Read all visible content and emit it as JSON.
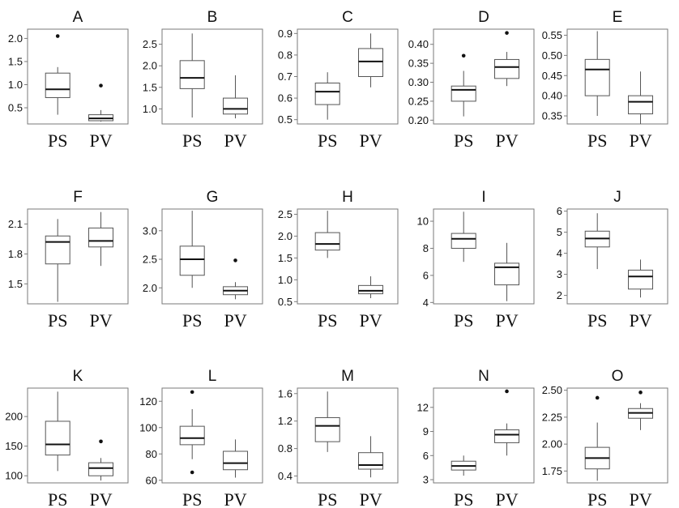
{
  "chart_data": [
    {
      "type": "box",
      "title": "A",
      "categories": [
        "PS",
        "PV"
      ],
      "ylim": [
        0.15,
        2.2
      ],
      "yticks": [
        0.5,
        1.0,
        1.5,
        2.0
      ],
      "ytick_labels": [
        "0.5",
        "1.0",
        "1.5",
        "2.0"
      ],
      "boxes": [
        {
          "min": 0.35,
          "q1": 0.72,
          "median": 0.9,
          "q3": 1.25,
          "max": 1.38,
          "outliers": [
            2.05
          ]
        },
        {
          "min": 0.2,
          "q1": 0.22,
          "median": 0.27,
          "q3": 0.35,
          "max": 0.45,
          "outliers": [
            0.98
          ]
        }
      ]
    },
    {
      "type": "box",
      "title": "B",
      "categories": [
        "PS",
        "PV"
      ],
      "ylim": [
        0.65,
        2.85
      ],
      "yticks": [
        1.0,
        1.5,
        2.0,
        2.5
      ],
      "ytick_labels": [
        "1.0",
        "1.5",
        "2.0",
        "2.5"
      ],
      "boxes": [
        {
          "min": 0.8,
          "q1": 1.47,
          "median": 1.72,
          "q3": 2.12,
          "max": 2.75,
          "outliers": []
        },
        {
          "min": 0.78,
          "q1": 0.88,
          "median": 1.0,
          "q3": 1.25,
          "max": 1.78,
          "outliers": []
        }
      ]
    },
    {
      "type": "box",
      "title": "C",
      "categories": [
        "PS",
        "PV"
      ],
      "ylim": [
        0.48,
        0.92
      ],
      "yticks": [
        0.5,
        0.6,
        0.7,
        0.8,
        0.9
      ],
      "ytick_labels": [
        "0.5",
        "0.6",
        "0.7",
        "0.8",
        "0.9"
      ],
      "boxes": [
        {
          "min": 0.5,
          "q1": 0.57,
          "median": 0.63,
          "q3": 0.67,
          "max": 0.72,
          "outliers": []
        },
        {
          "min": 0.65,
          "q1": 0.7,
          "median": 0.77,
          "q3": 0.83,
          "max": 0.9,
          "outliers": []
        }
      ]
    },
    {
      "type": "box",
      "title": "D",
      "categories": [
        "PS",
        "PV"
      ],
      "ylim": [
        0.19,
        0.44
      ],
      "yticks": [
        0.2,
        0.25,
        0.3,
        0.35,
        0.4
      ],
      "ytick_labels": [
        "0.20",
        "0.25",
        "0.30",
        "0.35",
        "0.40"
      ],
      "boxes": [
        {
          "min": 0.21,
          "q1": 0.25,
          "median": 0.28,
          "q3": 0.29,
          "max": 0.33,
          "outliers": [
            0.37
          ]
        },
        {
          "min": 0.29,
          "q1": 0.31,
          "median": 0.34,
          "q3": 0.36,
          "max": 0.38,
          "outliers": [
            0.43
          ]
        }
      ]
    },
    {
      "type": "box",
      "title": "E",
      "categories": [
        "PS",
        "PV"
      ],
      "ylim": [
        0.33,
        0.565
      ],
      "yticks": [
        0.35,
        0.4,
        0.45,
        0.5,
        0.55
      ],
      "ytick_labels": [
        "0.35",
        "0.40",
        "0.45",
        "0.50",
        "0.55"
      ],
      "boxes": [
        {
          "min": 0.35,
          "q1": 0.4,
          "median": 0.465,
          "q3": 0.49,
          "max": 0.56,
          "outliers": []
        },
        {
          "min": 0.33,
          "q1": 0.355,
          "median": 0.385,
          "q3": 0.4,
          "max": 0.46,
          "outliers": []
        }
      ]
    },
    {
      "type": "box",
      "title": "F",
      "categories": [
        "PS",
        "PV"
      ],
      "ylim": [
        1.3,
        2.25
      ],
      "yticks": [
        1.5,
        1.8,
        2.1
      ],
      "ytick_labels": [
        "1.5",
        "1.8",
        "2.1"
      ],
      "boxes": [
        {
          "min": 1.32,
          "q1": 1.7,
          "median": 1.92,
          "q3": 1.98,
          "max": 2.15,
          "outliers": []
        },
        {
          "min": 1.68,
          "q1": 1.87,
          "median": 1.93,
          "q3": 2.06,
          "max": 2.22,
          "outliers": []
        }
      ]
    },
    {
      "type": "box",
      "title": "G",
      "categories": [
        "PS",
        "PV"
      ],
      "ylim": [
        1.72,
        3.38
      ],
      "yticks": [
        2.0,
        2.5,
        3.0
      ],
      "ytick_labels": [
        "2.0",
        "2.5",
        "3.0"
      ],
      "boxes": [
        {
          "min": 2.0,
          "q1": 2.22,
          "median": 2.5,
          "q3": 2.73,
          "max": 3.35,
          "outliers": []
        },
        {
          "min": 1.8,
          "q1": 1.88,
          "median": 1.95,
          "q3": 2.02,
          "max": 2.1,
          "outliers": [
            2.48
          ]
        }
      ]
    },
    {
      "type": "box",
      "title": "H",
      "categories": [
        "PS",
        "PV"
      ],
      "ylim": [
        0.45,
        2.62
      ],
      "yticks": [
        0.5,
        1.0,
        1.5,
        2.0,
        2.5
      ],
      "ytick_labels": [
        "0.5",
        "1.0",
        "1.5",
        "2.0",
        "2.5"
      ],
      "boxes": [
        {
          "min": 1.5,
          "q1": 1.68,
          "median": 1.82,
          "q3": 2.08,
          "max": 2.58,
          "outliers": []
        },
        {
          "min": 0.58,
          "q1": 0.68,
          "median": 0.75,
          "q3": 0.87,
          "max": 1.08,
          "outliers": []
        }
      ]
    },
    {
      "type": "box",
      "title": "I",
      "categories": [
        "PS",
        "PV"
      ],
      "ylim": [
        3.9,
        10.9
      ],
      "yticks": [
        4,
        6,
        8,
        10
      ],
      "ytick_labels": [
        "4",
        "6",
        "8",
        "10"
      ],
      "boxes": [
        {
          "min": 7.0,
          "q1": 8.0,
          "median": 8.7,
          "q3": 9.1,
          "max": 10.7,
          "outliers": []
        },
        {
          "min": 4.1,
          "q1": 5.3,
          "median": 6.6,
          "q3": 6.9,
          "max": 8.4,
          "outliers": []
        }
      ]
    },
    {
      "type": "box",
      "title": "J",
      "categories": [
        "PS",
        "PV"
      ],
      "ylim": [
        1.6,
        6.1
      ],
      "yticks": [
        2,
        3,
        4,
        5,
        6
      ],
      "ytick_labels": [
        "2",
        "3",
        "4",
        "5",
        "6"
      ],
      "boxes": [
        {
          "min": 3.25,
          "q1": 4.3,
          "median": 4.7,
          "q3": 5.05,
          "max": 5.9,
          "outliers": []
        },
        {
          "min": 1.9,
          "q1": 2.3,
          "median": 2.9,
          "q3": 3.2,
          "max": 3.7,
          "outliers": []
        }
      ]
    },
    {
      "type": "box",
      "title": "K",
      "categories": [
        "PS",
        "PV"
      ],
      "ylim": [
        88,
        248
      ],
      "yticks": [
        100,
        150,
        200
      ],
      "ytick_labels": [
        "100",
        "150",
        "200"
      ],
      "boxes": [
        {
          "min": 108,
          "q1": 135,
          "median": 153,
          "q3": 192,
          "max": 242,
          "outliers": []
        },
        {
          "min": 92,
          "q1": 100,
          "median": 113,
          "q3": 122,
          "max": 130,
          "outliers": [
            158
          ]
        }
      ]
    },
    {
      "type": "box",
      "title": "L",
      "categories": [
        "PS",
        "PV"
      ],
      "ylim": [
        58,
        130
      ],
      "yticks": [
        60,
        80,
        100,
        120
      ],
      "ytick_labels": [
        "60",
        "80",
        "100",
        "120"
      ],
      "boxes": [
        {
          "min": 76,
          "q1": 87,
          "median": 92,
          "q3": 101,
          "max": 114,
          "outliers": [
            127,
            66
          ]
        },
        {
          "min": 62,
          "q1": 68,
          "median": 73,
          "q3": 82,
          "max": 91,
          "outliers": []
        }
      ]
    },
    {
      "type": "box",
      "title": "M",
      "categories": [
        "PS",
        "PV"
      ],
      "ylim": [
        0.3,
        1.68
      ],
      "yticks": [
        0.4,
        0.8,
        1.2,
        1.6
      ],
      "ytick_labels": [
        "0.4",
        "0.8",
        "1.2",
        "1.6"
      ],
      "boxes": [
        {
          "min": 0.75,
          "q1": 0.9,
          "median": 1.13,
          "q3": 1.25,
          "max": 1.63,
          "outliers": []
        },
        {
          "min": 0.38,
          "q1": 0.5,
          "median": 0.56,
          "q3": 0.74,
          "max": 0.98,
          "outliers": []
        }
      ]
    },
    {
      "type": "box",
      "title": "N",
      "categories": [
        "PS",
        "PV"
      ],
      "ylim": [
        2.6,
        14.4
      ],
      "yticks": [
        3,
        6,
        9,
        12
      ],
      "ytick_labels": [
        "3",
        "6",
        "9",
        "12"
      ],
      "boxes": [
        {
          "min": 3.5,
          "q1": 4.2,
          "median": 4.7,
          "q3": 5.3,
          "max": 6.0,
          "outliers": []
        },
        {
          "min": 6.0,
          "q1": 7.6,
          "median": 8.6,
          "q3": 9.2,
          "max": 10.0,
          "outliers": [
            14.0
          ]
        }
      ]
    },
    {
      "type": "box",
      "title": "O",
      "categories": [
        "PS",
        "PV"
      ],
      "ylim": [
        1.64,
        2.52
      ],
      "yticks": [
        1.75,
        2.0,
        2.25,
        2.5
      ],
      "ytick_labels": [
        "1.75",
        "2.00",
        "2.25",
        "2.50"
      ],
      "boxes": [
        {
          "min": 1.66,
          "q1": 1.77,
          "median": 1.87,
          "q3": 1.97,
          "max": 2.2,
          "outliers": [
            2.43
          ]
        },
        {
          "min": 2.13,
          "q1": 2.24,
          "median": 2.29,
          "q3": 2.33,
          "max": 2.38,
          "outliers": [
            2.48
          ]
        }
      ]
    }
  ],
  "colors": {
    "frame": "#7a7a7a",
    "box": "#555555",
    "median": "#111111",
    "text": "#111111"
  }
}
